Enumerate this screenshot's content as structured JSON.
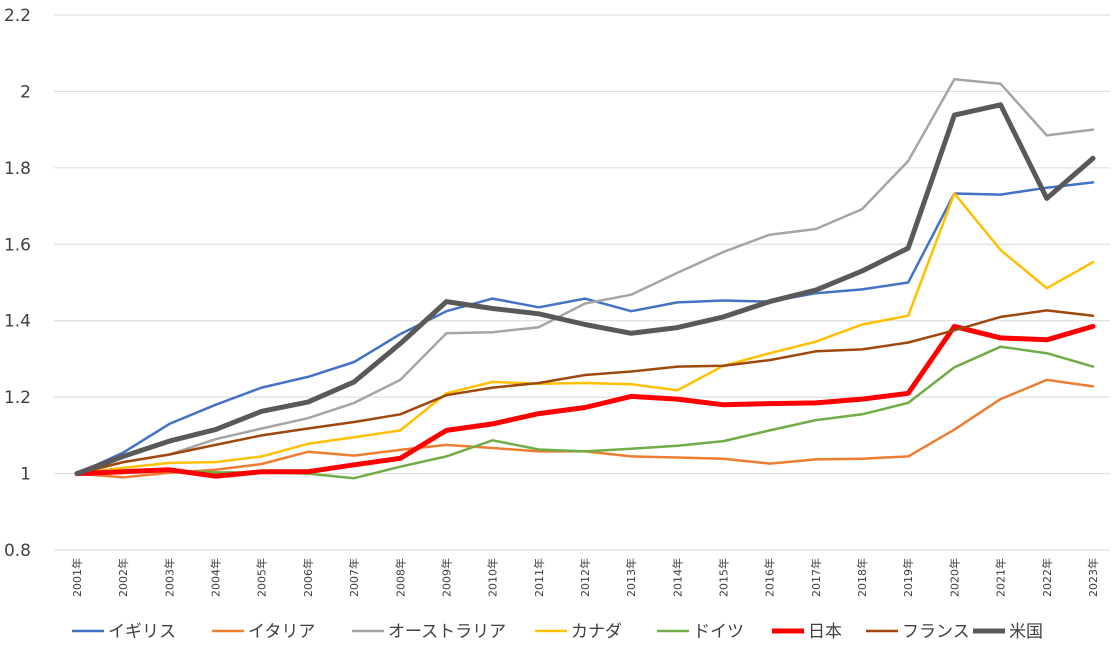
{
  "chart_data": {
    "type": "line",
    "title": "",
    "xlabel": "",
    "ylabel": "",
    "ylim": [
      0.8,
      2.2
    ],
    "yticks": [
      0.8,
      1,
      1.2,
      1.4,
      1.6,
      1.8,
      2,
      2.2
    ],
    "grid": true,
    "legend": "bottom",
    "categories": [
      "2001年",
      "2002年",
      "2003年",
      "2004年",
      "2005年",
      "2006年",
      "2007年",
      "2008年",
      "2009年",
      "2010年",
      "2011年",
      "2012年",
      "2013年",
      "2014年",
      "2015年",
      "2016年",
      "2017年",
      "2018年",
      "2019年",
      "2020年",
      "2021年",
      "2022年",
      "2023年"
    ],
    "series": [
      {
        "name": "イギリス",
        "color": "#4472c4",
        "width": 2.5,
        "values": [
          1.0,
          1.055,
          1.13,
          1.18,
          1.225,
          1.253,
          1.292,
          1.365,
          1.425,
          1.458,
          1.435,
          1.458,
          1.425,
          1.448,
          1.453,
          1.45,
          1.472,
          1.482,
          1.5,
          1.733,
          1.73,
          1.748,
          1.762
        ]
      },
      {
        "name": "イタリア",
        "color": "#ed7d31",
        "width": 2.5,
        "values": [
          1.0,
          0.99,
          1.002,
          1.01,
          1.025,
          1.057,
          1.047,
          1.062,
          1.075,
          1.067,
          1.058,
          1.058,
          1.045,
          1.042,
          1.039,
          1.026,
          1.037,
          1.039,
          1.045,
          1.115,
          1.195,
          1.245,
          1.228
        ]
      },
      {
        "name": "オーストラリア",
        "color": "#a5a5a5",
        "width": 2.5,
        "values": [
          1.0,
          1.03,
          1.05,
          1.09,
          1.118,
          1.145,
          1.185,
          1.245,
          1.367,
          1.37,
          1.383,
          1.445,
          1.468,
          1.525,
          1.58,
          1.625,
          1.64,
          1.692,
          1.818,
          2.032,
          2.02,
          1.885,
          1.9
        ]
      },
      {
        "name": "カナダ",
        "color": "#ffc000",
        "width": 2.5,
        "values": [
          1.0,
          1.015,
          1.028,
          1.03,
          1.045,
          1.078,
          1.095,
          1.113,
          1.21,
          1.24,
          1.235,
          1.237,
          1.234,
          1.218,
          1.282,
          1.315,
          1.345,
          1.39,
          1.413,
          1.733,
          1.585,
          1.485,
          1.553
        ]
      },
      {
        "name": "ドイツ",
        "color": "#70ad47",
        "width": 2.5,
        "values": [
          1.0,
          1.005,
          1.008,
          1.003,
          1.003,
          1.0,
          0.988,
          1.018,
          1.045,
          1.087,
          1.063,
          1.058,
          1.065,
          1.073,
          1.085,
          1.113,
          1.14,
          1.155,
          1.185,
          1.278,
          1.332,
          1.315,
          1.28
        ]
      },
      {
        "name": "日本",
        "color": "#ff0000",
        "width": 5,
        "values": [
          1.0,
          1.005,
          1.01,
          0.993,
          1.005,
          1.005,
          1.023,
          1.04,
          1.113,
          1.13,
          1.157,
          1.173,
          1.202,
          1.195,
          1.18,
          1.183,
          1.185,
          1.195,
          1.21,
          1.385,
          1.355,
          1.35,
          1.385
        ]
      },
      {
        "name": "フランス",
        "color": "#9e480e",
        "width": 2.5,
        "values": [
          1.0,
          1.03,
          1.05,
          1.075,
          1.1,
          1.118,
          1.135,
          1.155,
          1.205,
          1.225,
          1.237,
          1.258,
          1.267,
          1.28,
          1.282,
          1.297,
          1.32,
          1.325,
          1.343,
          1.375,
          1.41,
          1.427,
          1.413
        ]
      },
      {
        "name": "米国",
        "color": "#595959",
        "width": 5,
        "values": [
          1.0,
          1.045,
          1.085,
          1.115,
          1.163,
          1.187,
          1.24,
          1.34,
          1.45,
          1.432,
          1.418,
          1.39,
          1.367,
          1.382,
          1.41,
          1.45,
          1.48,
          1.53,
          1.59,
          1.938,
          1.965,
          1.72,
          1.825
        ]
      }
    ]
  }
}
